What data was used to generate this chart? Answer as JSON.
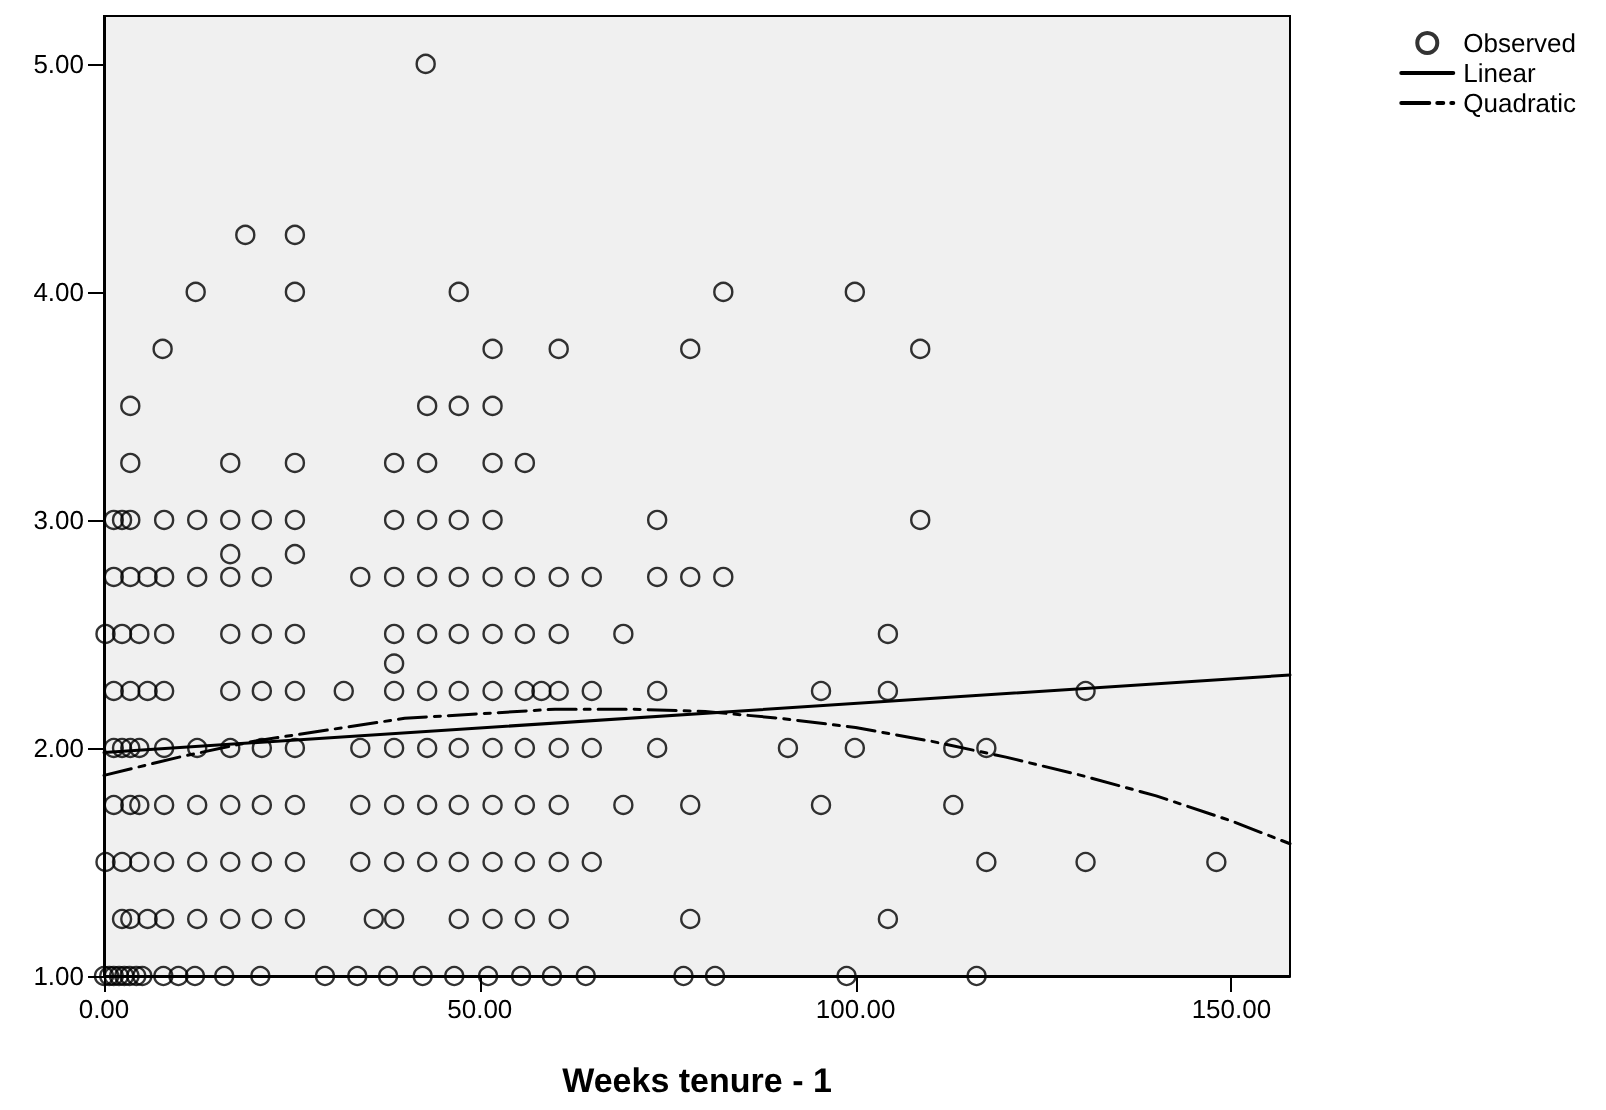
{
  "chart_data": {
    "type": "scatter",
    "xlabel": "Weeks tenure - 1",
    "xlim": [
      0,
      157.8
    ],
    "ylim": [
      1,
      5.21
    ],
    "xticks": [
      {
        "value": 0,
        "label": "0.00"
      },
      {
        "value": 50,
        "label": "50.00"
      },
      {
        "value": 100,
        "label": "100.00"
      },
      {
        "value": 150,
        "label": "150.00"
      }
    ],
    "yticks": [
      {
        "value": 1,
        "label": "1.00"
      },
      {
        "value": 2,
        "label": "2.00"
      },
      {
        "value": 3,
        "label": "3.00"
      },
      {
        "value": 4,
        "label": "4.00"
      },
      {
        "value": 5,
        "label": "5.00"
      }
    ],
    "grid": false,
    "legend": "top right",
    "series": [
      {
        "name": "Observed",
        "marker": "circle",
        "color": "#000000",
        "x": [
          42.8,
          18.8,
          25.4,
          12.2,
          25.4,
          47.2,
          82.4,
          99.9,
          7.8,
          51.7,
          60.5,
          78.0,
          108.6,
          3.5,
          43.0,
          47.2,
          51.7,
          3.5,
          16.8,
          25.4,
          38.6,
          43.0,
          51.7,
          56.0,
          1.3,
          2.4,
          3.5,
          8.0,
          12.4,
          16.8,
          21.0,
          25.4,
          38.6,
          43.0,
          47.2,
          51.7,
          73.6,
          108.6,
          16.8,
          25.4,
          1.3,
          3.5,
          5.8,
          8.0,
          12.4,
          16.8,
          21.0,
          34.1,
          38.6,
          43.0,
          47.2,
          51.7,
          56.0,
          60.5,
          64.9,
          73.6,
          78.0,
          82.4,
          0.2,
          2.4,
          4.7,
          8.0,
          16.8,
          21.0,
          25.4,
          38.6,
          43.0,
          47.2,
          51.7,
          56.0,
          60.5,
          69.1,
          104.3,
          38.6,
          1.3,
          3.5,
          5.8,
          8.0,
          16.8,
          21.0,
          25.4,
          31.9,
          38.6,
          43.0,
          47.2,
          51.7,
          56.0,
          58.2,
          60.5,
          64.9,
          73.6,
          95.4,
          104.3,
          130.6,
          1.3,
          2.4,
          3.5,
          4.7,
          8.0,
          12.4,
          16.8,
          21.0,
          25.4,
          34.1,
          38.6,
          43.0,
          47.2,
          51.7,
          56.0,
          60.5,
          64.9,
          73.6,
          91.0,
          99.9,
          113.0,
          117.4,
          1.3,
          3.5,
          4.7,
          8.0,
          12.4,
          16.8,
          21.0,
          25.4,
          34.1,
          38.6,
          43.0,
          47.2,
          51.7,
          56.0,
          60.5,
          69.1,
          78.0,
          95.4,
          113.0,
          0.2,
          2.4,
          4.7,
          8.0,
          12.4,
          16.8,
          21.0,
          25.4,
          34.1,
          38.6,
          43.0,
          47.2,
          51.7,
          56.0,
          60.5,
          64.9,
          117.4,
          130.6,
          148.0,
          2.4,
          3.5,
          5.8,
          8.0,
          12.4,
          16.8,
          21.0,
          25.4,
          35.9,
          38.6,
          47.2,
          51.7,
          56.0,
          60.5,
          78.0,
          104.3,
          0,
          0.7,
          1.3,
          2.0,
          2.7,
          3.4,
          4.3,
          5.1,
          7.9,
          9.9,
          12.1,
          16.0,
          20.8,
          29.4,
          33.7,
          37.8,
          42.4,
          46.6,
          51.1,
          55.5,
          59.6,
          64.1,
          77.1,
          81.3,
          98.8,
          116.1
        ],
        "values": [
          5.0,
          4.25,
          4.25,
          4.0,
          4.0,
          4.0,
          4.0,
          4.0,
          3.75,
          3.75,
          3.75,
          3.75,
          3.75,
          3.5,
          3.5,
          3.5,
          3.5,
          3.25,
          3.25,
          3.25,
          3.25,
          3.25,
          3.25,
          3.25,
          3.0,
          3.0,
          3.0,
          3.0,
          3.0,
          3.0,
          3.0,
          3.0,
          3.0,
          3.0,
          3.0,
          3.0,
          3.0,
          3.0,
          2.85,
          2.85,
          2.75,
          2.75,
          2.75,
          2.75,
          2.75,
          2.75,
          2.75,
          2.75,
          2.75,
          2.75,
          2.75,
          2.75,
          2.75,
          2.75,
          2.75,
          2.75,
          2.75,
          2.75,
          2.5,
          2.5,
          2.5,
          2.5,
          2.5,
          2.5,
          2.5,
          2.5,
          2.5,
          2.5,
          2.5,
          2.5,
          2.5,
          2.5,
          2.5,
          2.37,
          2.25,
          2.25,
          2.25,
          2.25,
          2.25,
          2.25,
          2.25,
          2.25,
          2.25,
          2.25,
          2.25,
          2.25,
          2.25,
          2.25,
          2.25,
          2.25,
          2.25,
          2.25,
          2.25,
          2.25,
          2.0,
          2.0,
          2.0,
          2.0,
          2.0,
          2.0,
          2.0,
          2.0,
          2.0,
          2.0,
          2.0,
          2.0,
          2.0,
          2.0,
          2.0,
          2.0,
          2.0,
          2.0,
          2.0,
          2.0,
          2.0,
          2.0,
          1.75,
          1.75,
          1.75,
          1.75,
          1.75,
          1.75,
          1.75,
          1.75,
          1.75,
          1.75,
          1.75,
          1.75,
          1.75,
          1.75,
          1.75,
          1.75,
          1.75,
          1.75,
          1.75,
          1.5,
          1.5,
          1.5,
          1.5,
          1.5,
          1.5,
          1.5,
          1.5,
          1.5,
          1.5,
          1.5,
          1.5,
          1.5,
          1.5,
          1.5,
          1.5,
          1.5,
          1.5,
          1.5,
          1.25,
          1.25,
          1.25,
          1.25,
          1.25,
          1.25,
          1.25,
          1.25,
          1.25,
          1.25,
          1.25,
          1.25,
          1.25,
          1.25,
          1.25,
          1.25,
          1.0,
          1.0,
          1.0,
          1.0,
          1.0,
          1.0,
          1.0,
          1.0,
          1.0,
          1.0,
          1.0,
          1.0,
          1.0,
          1.0,
          1.0,
          1.0,
          1.0,
          1.0,
          1.0,
          1.0,
          1.0,
          1.0,
          1.0,
          1.0,
          1.0,
          1.0
        ]
      },
      {
        "name": "Linear",
        "type": "line",
        "marker": "none",
        "line_style": "solid",
        "color": "#000000",
        "x": [
          0,
          157.8
        ],
        "values": [
          1.98,
          2.32
        ]
      },
      {
        "name": "Quadratic",
        "type": "line",
        "marker": "none",
        "line_style": "dashed",
        "color": "#000000",
        "x": [
          0,
          10,
          20,
          30,
          40,
          50,
          60,
          70,
          80,
          90,
          100,
          110,
          120,
          130,
          140,
          150,
          157.8
        ],
        "values": [
          1.88,
          1.96,
          2.03,
          2.08,
          2.13,
          2.15,
          2.17,
          2.17,
          2.16,
          2.13,
          2.09,
          2.03,
          1.96,
          1.88,
          1.79,
          1.68,
          1.58
        ]
      }
    ]
  }
}
